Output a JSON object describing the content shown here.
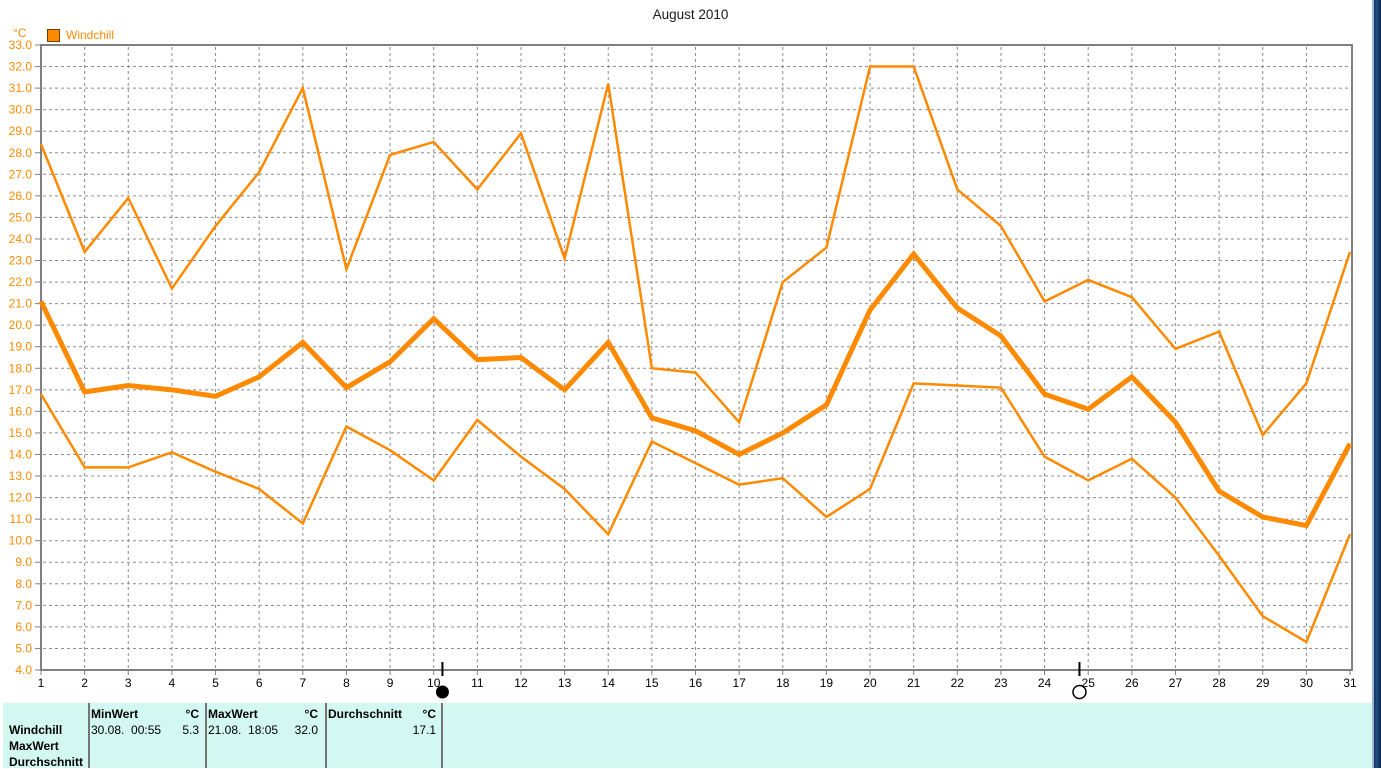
{
  "chart_data": {
    "type": "line",
    "title": "August 2010",
    "y_unit": "°C",
    "legend": [
      {
        "label": "Windchill",
        "color": "#ff8a00"
      }
    ],
    "grid": "dashed",
    "legend_position": "top-left",
    "xlim": [
      1,
      31
    ],
    "ylim": [
      4.0,
      33.0
    ],
    "y_tick_step": 1.0,
    "x_tick_labels": [
      "1",
      "2",
      "3",
      "4",
      "5",
      "6",
      "7",
      "8",
      "9",
      "10",
      "11",
      "12",
      "13",
      "14",
      "15",
      "16",
      "17",
      "18",
      "19",
      "20",
      "21",
      "22",
      "23",
      "24",
      "25",
      "26",
      "27",
      "28",
      "29",
      "30",
      "31"
    ],
    "y_tick_labels": [
      "33.0",
      "32.0",
      "31.0",
      "30.0",
      "29.0",
      "28.0",
      "27.0",
      "26.0",
      "25.0",
      "24.0",
      "23.0",
      "22.0",
      "21.0",
      "20.0",
      "19.0",
      "18.0",
      "17.0",
      "16.0",
      "15.0",
      "14.0",
      "13.0",
      "12.0",
      "11.0",
      "10.0",
      "9.0",
      "8.0",
      "7.0",
      "6.0",
      "5.0",
      "4.0"
    ],
    "series": [
      {
        "name": "max",
        "line": "thin",
        "values": [
          28.4,
          23.4,
          25.9,
          21.7,
          24.6,
          27.1,
          31.0,
          22.6,
          27.9,
          28.5,
          26.3,
          28.9,
          23.1,
          31.2,
          18.0,
          17.8,
          15.5,
          22.0,
          23.6,
          32.0,
          32.0,
          26.3,
          24.6,
          21.1,
          22.1,
          21.3,
          18.9,
          19.7,
          14.9,
          17.3,
          23.4
        ]
      },
      {
        "name": "average",
        "line": "thick",
        "values": [
          21.1,
          16.9,
          17.2,
          17.0,
          16.7,
          17.6,
          19.2,
          17.1,
          18.3,
          20.3,
          18.4,
          18.5,
          17.0,
          19.2,
          15.7,
          15.1,
          14.0,
          15.0,
          16.3,
          20.7,
          23.3,
          20.8,
          19.5,
          16.8,
          16.1,
          17.6,
          15.5,
          12.3,
          11.1,
          10.7,
          14.5
        ]
      },
      {
        "name": "min",
        "line": "thin",
        "values": [
          16.8,
          13.4,
          13.4,
          14.1,
          13.2,
          12.4,
          10.8,
          15.3,
          14.2,
          12.8,
          15.6,
          13.9,
          12.4,
          10.3,
          14.6,
          13.6,
          12.6,
          12.9,
          11.1,
          12.4,
          17.3,
          17.2,
          17.1,
          13.9,
          12.8,
          13.8,
          12.0,
          9.3,
          6.5,
          5.3,
          10.3
        ]
      }
    ],
    "markers": [
      {
        "style": "filled",
        "day_position": 10.2
      },
      {
        "style": "open",
        "day_position": 24.8
      }
    ],
    "colors": {
      "accent": "#ff8a00",
      "grid": "#8c8c8c",
      "axis": "#808080"
    }
  },
  "stats_panel": {
    "row_labels": [
      "Windchill",
      "MaxWert",
      "Durchschnitt"
    ],
    "columns": [
      {
        "header": "MinWert",
        "unit": "°C",
        "datetime": "30.08.  00:55",
        "value": "5.3"
      },
      {
        "header": "MaxWert",
        "unit": "°C",
        "datetime": "21.08.  18:05",
        "value": "32.0"
      },
      {
        "header": "Durchschnitt",
        "unit": "°C",
        "datetime": "",
        "value": "17.1"
      }
    ],
    "background": "#d3f8f2"
  }
}
